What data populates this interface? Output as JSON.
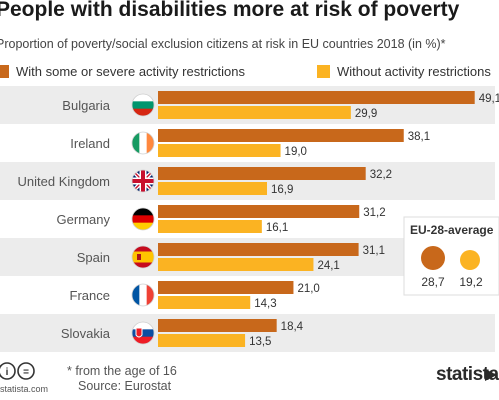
{
  "title": "People with disabilities more at risk of poverty",
  "subtitle": "Proportion of poverty/social exclusion citizens at risk in EU countries 2018 (in %)*",
  "legend": {
    "with_label": "With some or severe activity restrictions",
    "without_label": "Without activity restrictions"
  },
  "colors": {
    "with": "#c8681b",
    "without": "#fbb322",
    "band": "#ececec"
  },
  "chart_data": {
    "type": "bar",
    "orientation": "horizontal",
    "categories": [
      "Bulgaria",
      "Ireland",
      "United Kingdom",
      "Germany",
      "Spain",
      "France",
      "Slovakia"
    ],
    "series": [
      {
        "name": "With some or severe activity restrictions",
        "values": [
          49.1,
          38.1,
          32.2,
          31.2,
          31.1,
          21.0,
          18.4
        ],
        "labels": [
          "49,1",
          "38,1",
          "32,2",
          "31,2",
          "31,1",
          "21,0",
          "18,4"
        ]
      },
      {
        "name": "Without activity restrictions",
        "values": [
          29.9,
          19.0,
          16.9,
          16.1,
          24.1,
          14.3,
          13.5
        ],
        "labels": [
          "29,9",
          "19,0",
          "16,9",
          "16,1",
          "24,1",
          "14,3",
          "13,5"
        ]
      }
    ],
    "flags": [
      "flag-bulgaria",
      "flag-ireland",
      "flag-united-kingdom",
      "flag-germany",
      "flag-spain",
      "flag-france",
      "flag-slovakia"
    ],
    "grid": false,
    "legend_position": "top",
    "inset": {
      "title": "EU-28-average",
      "values": [
        28.7,
        19.2
      ],
      "labels": [
        "28,7",
        "19,2"
      ]
    }
  },
  "footnote": {
    "age": "* from the age of 16",
    "source": "Source: Eurostat"
  },
  "brand": "statista"
}
